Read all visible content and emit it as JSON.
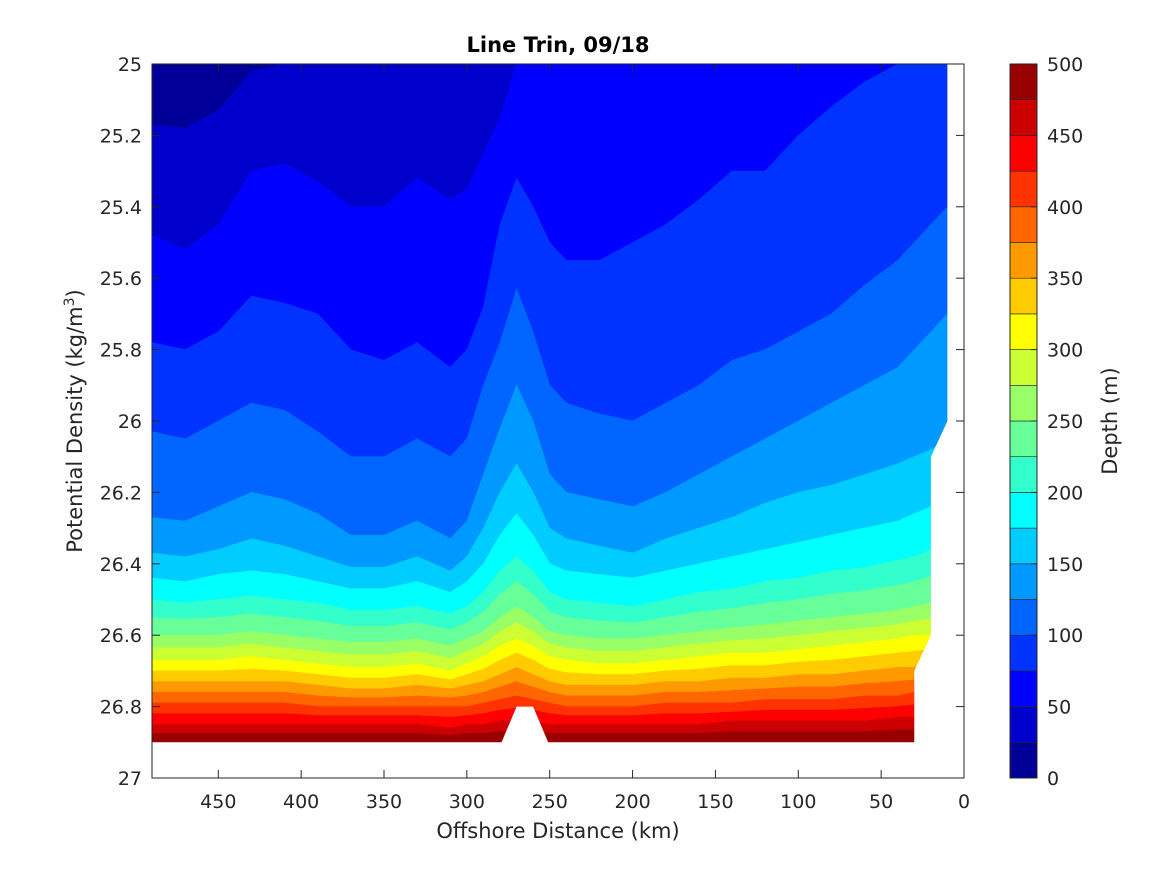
{
  "chart_data": {
    "type": "contour",
    "title": "Line Trin, 09/18",
    "xlabel": "Offshore Distance (km)",
    "ylabel_main": "Potential Density (kg/m",
    "ylabel_sup": "3",
    "ylabel_close": ")",
    "xlim": [
      490,
      0
    ],
    "x_reversed": true,
    "ylim": [
      25,
      27
    ],
    "y_reversed": true,
    "x_ticks": [
      450,
      400,
      350,
      300,
      250,
      200,
      150,
      100,
      50,
      0
    ],
    "y_ticks": [
      "25",
      "25.2",
      "25.4",
      "25.6",
      "25.8",
      "26",
      "26.2",
      "26.4",
      "26.6",
      "26.8",
      "27"
    ],
    "colorbar": {
      "label": "Depth (m)",
      "range": [
        0,
        500
      ],
      "ticks": [
        0,
        50,
        100,
        150,
        200,
        250,
        300,
        350,
        400,
        450,
        500
      ],
      "levels": [
        0,
        25,
        50,
        75,
        100,
        125,
        150,
        175,
        200,
        225,
        250,
        275,
        300,
        325,
        350,
        375,
        400,
        425,
        450,
        475,
        500
      ],
      "colormap": "jet"
    },
    "x": [
      490,
      470,
      450,
      430,
      410,
      390,
      370,
      350,
      330,
      310,
      300,
      290,
      280,
      270,
      260,
      250,
      240,
      220,
      200,
      180,
      160,
      140,
      120,
      100,
      80,
      60,
      40,
      30,
      20,
      10
    ],
    "data_extent_x": [
      490,
      10
    ],
    "data_extent_bottom_y": 26.9,
    "isopycnal_depths_m": [
      {
        "depth": 25,
        "y": [
          25.17,
          25.18,
          25.13,
          25.02,
          25.0,
          25.0,
          25.0,
          25.0,
          25.0,
          25.0,
          25.0,
          25.0,
          25.0,
          25.0,
          25.0,
          25.0,
          25.0,
          25.0,
          25.0,
          25.0,
          25.0,
          25.0,
          25.0,
          25.0,
          25.0,
          25.0,
          25.0,
          25.0,
          25.0,
          25.0
        ]
      },
      {
        "depth": 50,
        "y": [
          25.48,
          25.52,
          25.45,
          25.3,
          25.28,
          25.33,
          25.4,
          25.4,
          25.32,
          25.38,
          25.35,
          25.25,
          25.15,
          25.0,
          25.0,
          25.0,
          25.0,
          25.0,
          25.0,
          25.0,
          25.0,
          25.0,
          25.0,
          25.0,
          25.0,
          25.0,
          25.0,
          25.0,
          25.0,
          25.0
        ]
      },
      {
        "depth": 75,
        "y": [
          25.78,
          25.8,
          25.75,
          25.65,
          25.67,
          25.7,
          25.8,
          25.83,
          25.78,
          25.85,
          25.8,
          25.68,
          25.45,
          25.32,
          25.4,
          25.5,
          25.55,
          25.55,
          25.5,
          25.45,
          25.38,
          25.3,
          25.3,
          25.2,
          25.12,
          25.05,
          25.0,
          25.0,
          25.0,
          25.0
        ]
      },
      {
        "depth": 100,
        "y": [
          26.03,
          26.05,
          26.0,
          25.95,
          25.97,
          26.03,
          26.1,
          26.1,
          26.05,
          26.1,
          26.05,
          25.9,
          25.78,
          25.63,
          25.75,
          25.9,
          25.95,
          25.98,
          26.0,
          25.95,
          25.9,
          25.83,
          25.8,
          25.75,
          25.7,
          25.62,
          25.55,
          25.5,
          25.45,
          25.4
        ]
      },
      {
        "depth": 125,
        "y": [
          26.27,
          26.28,
          26.24,
          26.2,
          26.22,
          26.26,
          26.32,
          26.32,
          26.28,
          26.33,
          26.28,
          26.15,
          26.02,
          25.9,
          26.0,
          26.15,
          26.2,
          26.22,
          26.24,
          26.2,
          26.15,
          26.1,
          26.05,
          26.0,
          25.95,
          25.9,
          25.85,
          25.8,
          25.75,
          25.7
        ]
      },
      {
        "depth": 150,
        "y": [
          26.37,
          26.38,
          26.36,
          26.33,
          26.35,
          26.38,
          26.41,
          26.41,
          26.38,
          26.42,
          26.38,
          26.3,
          26.2,
          26.12,
          26.2,
          26.3,
          26.33,
          26.35,
          26.37,
          26.33,
          26.3,
          26.27,
          26.23,
          26.2,
          26.18,
          26.15,
          26.12,
          26.1,
          26.08,
          26.05
        ]
      },
      {
        "depth": 175,
        "y": [
          26.44,
          26.45,
          26.43,
          26.42,
          26.43,
          26.45,
          26.47,
          26.47,
          26.45,
          26.48,
          26.45,
          26.4,
          26.32,
          26.26,
          26.32,
          26.4,
          26.42,
          26.43,
          26.44,
          26.42,
          26.4,
          26.38,
          26.36,
          26.34,
          26.32,
          26.3,
          26.28,
          26.26,
          26.24,
          26.22
        ]
      },
      {
        "depth": 200,
        "y": [
          26.5,
          26.51,
          26.5,
          26.49,
          26.5,
          26.51,
          26.53,
          26.53,
          26.52,
          26.54,
          26.52,
          26.48,
          26.42,
          26.38,
          26.42,
          26.48,
          26.5,
          26.51,
          26.52,
          26.5,
          26.48,
          26.47,
          26.45,
          26.44,
          26.42,
          26.41,
          26.39,
          26.38,
          26.36,
          26.35
        ]
      },
      {
        "depth": 250,
        "y": [
          26.6,
          26.6,
          26.6,
          26.59,
          26.6,
          26.61,
          26.62,
          26.62,
          26.61,
          26.63,
          26.61,
          26.59,
          26.55,
          26.52,
          26.55,
          26.59,
          26.6,
          26.61,
          26.61,
          26.6,
          26.59,
          26.58,
          26.57,
          26.56,
          26.55,
          26.54,
          26.53,
          26.52,
          26.51,
          26.5
        ]
      },
      {
        "depth": 300,
        "y": [
          26.67,
          26.67,
          26.67,
          26.66,
          26.67,
          26.68,
          26.69,
          26.69,
          26.68,
          26.7,
          26.68,
          26.66,
          26.63,
          26.61,
          26.63,
          26.66,
          26.67,
          26.68,
          26.68,
          26.67,
          26.66,
          26.65,
          26.65,
          26.64,
          26.63,
          26.62,
          26.61,
          26.6,
          26.6,
          26.59
        ]
      },
      {
        "depth": 350,
        "y": [
          26.73,
          26.73,
          26.73,
          26.73,
          26.73,
          26.74,
          26.75,
          26.75,
          26.74,
          26.75,
          26.74,
          26.73,
          26.71,
          26.69,
          26.71,
          26.73,
          26.74,
          26.74,
          26.74,
          26.73,
          26.73,
          26.72,
          26.72,
          26.71,
          26.71,
          26.7,
          26.69,
          26.69,
          26.68,
          26.68
        ]
      },
      {
        "depth": 400,
        "y": [
          26.79,
          26.79,
          26.79,
          26.79,
          26.79,
          26.8,
          26.8,
          26.8,
          26.8,
          26.8,
          26.8,
          26.79,
          26.78,
          26.77,
          26.78,
          26.79,
          26.8,
          26.8,
          26.8,
          26.79,
          26.79,
          26.79,
          26.78,
          26.78,
          26.78,
          26.77,
          26.77,
          26.76,
          26.76,
          26.76
        ]
      },
      {
        "depth": 450,
        "y": [
          26.85,
          26.85,
          26.85,
          26.85,
          26.85,
          26.85,
          26.85,
          26.85,
          26.85,
          26.86,
          26.85,
          26.85,
          26.84,
          26.84,
          26.84,
          26.85,
          26.85,
          26.85,
          26.85,
          26.85,
          26.85,
          26.84,
          26.84,
          26.84,
          26.84,
          26.84,
          26.83,
          26.83,
          26.83,
          26.83
        ]
      }
    ],
    "grid": false
  }
}
